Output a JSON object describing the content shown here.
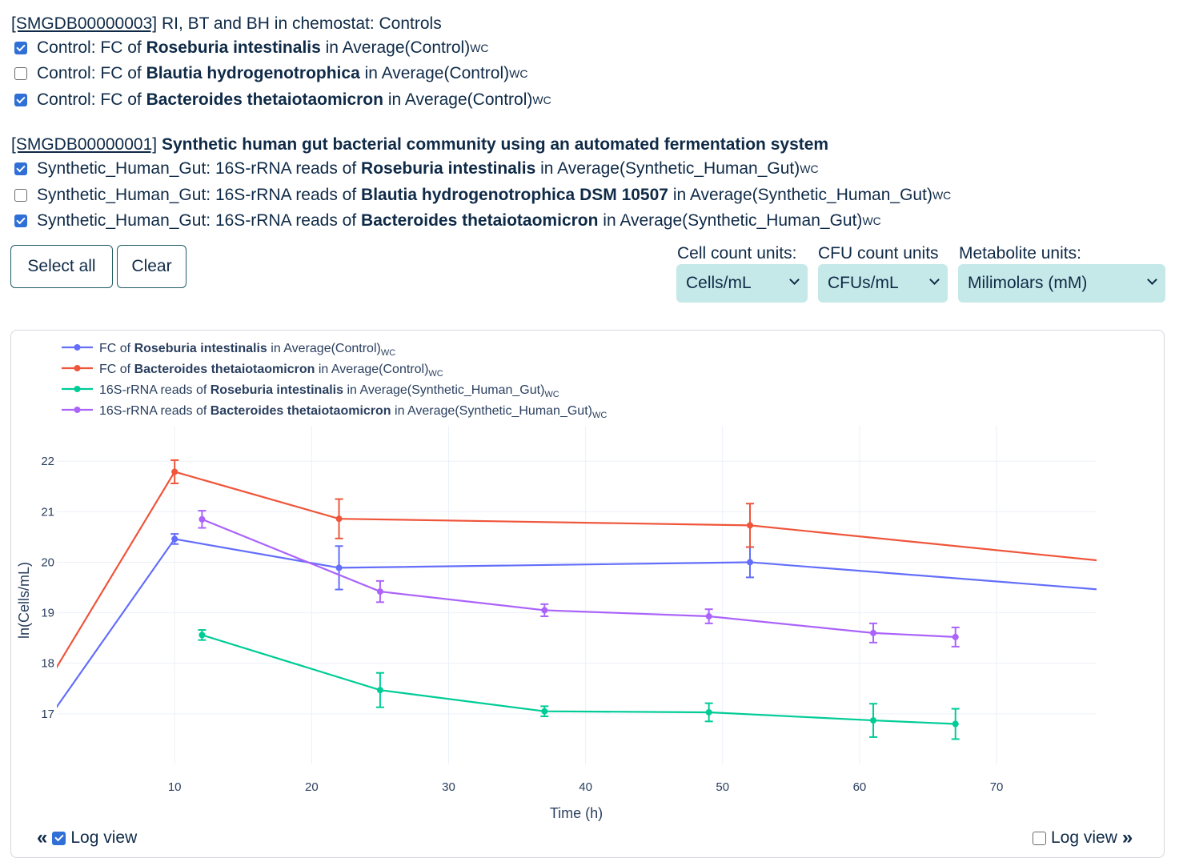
{
  "studies": [
    {
      "id": "[SMGDB00000003]",
      "name": "RI, BT and BH in chemostat: Controls",
      "series": [
        {
          "checked": true,
          "prefix": "Control: FC of ",
          "organism": "Roseburia intestinalis",
          "mid": " in Average(Control)",
          "sub": "WC"
        },
        {
          "checked": false,
          "prefix": "Control: FC of ",
          "organism": "Blautia hydrogenotrophica",
          "mid": " in Average(Control)",
          "sub": "WC"
        },
        {
          "checked": true,
          "prefix": "Control: FC of ",
          "organism": "Bacteroides thetaiotaomicron",
          "mid": " in Average(Control)",
          "sub": "WC"
        }
      ]
    },
    {
      "id": "[SMGDB00000001]",
      "name": "Synthetic human gut bacterial community using an automated fermentation system",
      "series": [
        {
          "checked": true,
          "prefix": "Synthetic_Human_Gut: 16S-rRNA reads of ",
          "organism": "Roseburia intestinalis",
          "mid": " in Average(Synthetic_Human_Gut)",
          "sub": "WC"
        },
        {
          "checked": false,
          "prefix": "Synthetic_Human_Gut: 16S-rRNA reads of ",
          "organism": "Blautia hydrogenotrophica DSM 10507",
          "mid": " in Average(Synthetic_Human_Gut)",
          "sub": "WC"
        },
        {
          "checked": true,
          "prefix": "Synthetic_Human_Gut: 16S-rRNA reads of ",
          "organism": "Bacteroides thetaiotaomicron",
          "mid": " in Average(Synthetic_Human_Gut)",
          "sub": "WC"
        }
      ]
    }
  ],
  "buttons": {
    "select_all": "Select all",
    "clear": "Clear"
  },
  "units": {
    "cell": {
      "label": "Cell count units:",
      "value": "Cells/mL"
    },
    "cfu": {
      "label": "CFU count units",
      "value": "CFUs/mL"
    },
    "metabolite": {
      "label": "Metabolite units:",
      "value": "Milimolars (mM)"
    }
  },
  "log_view": {
    "left_label": "Log view",
    "left_checked": true,
    "right_label": "Log view",
    "right_checked": false
  },
  "chart_data": {
    "type": "line",
    "xlabel": "Time (h)",
    "ylabel": "ln(Cells/mL)",
    "x_ticks": [
      10,
      20,
      30,
      40,
      50,
      60,
      70
    ],
    "y_ticks": [
      17,
      18,
      19,
      20,
      21,
      22
    ],
    "xlim": [
      1.4,
      77.3
    ],
    "ylim": [
      16.0,
      22.7
    ],
    "grid": true,
    "legend_position": "top-left",
    "series": [
      {
        "legend_prefix": "FC of ",
        "legend_organism": "Roseburia intestinalis",
        "legend_suffix": " in Average(Control)",
        "legend_sub": "WC",
        "color": "#636efa",
        "points": [
          {
            "x": 0,
            "y": 16.6,
            "marker": false
          },
          {
            "x": 10,
            "y": 20.46,
            "err": 0.1
          },
          {
            "x": 22,
            "y": 19.89,
            "err": 0.43
          },
          {
            "x": 52,
            "y": 20.0,
            "err": 0.3
          },
          {
            "x": 78,
            "y": 19.45,
            "marker": false
          }
        ]
      },
      {
        "legend_prefix": "FC of ",
        "legend_organism": "Bacteroides thetaiotaomicron",
        "legend_suffix": " in Average(Control)",
        "legend_sub": "WC",
        "color": "#ef553b",
        "points": [
          {
            "x": 0,
            "y": 17.3,
            "marker": false
          },
          {
            "x": 10,
            "y": 21.79,
            "err": 0.23
          },
          {
            "x": 22,
            "y": 20.86,
            "err": 0.39
          },
          {
            "x": 52,
            "y": 20.73,
            "err": 0.43
          },
          {
            "x": 78,
            "y": 20.02,
            "marker": false
          }
        ]
      },
      {
        "legend_prefix": "16S-rRNA reads of ",
        "legend_organism": "Roseburia intestinalis",
        "legend_suffix": " in Average(Synthetic_Human_Gut)",
        "legend_sub": "WC",
        "color": "#00cc96",
        "points": [
          {
            "x": 12,
            "y": 18.56,
            "err": 0.1
          },
          {
            "x": 25,
            "y": 17.47,
            "err": 0.34
          },
          {
            "x": 37,
            "y": 17.05,
            "err": 0.1
          },
          {
            "x": 49,
            "y": 17.03,
            "err": 0.18
          },
          {
            "x": 61,
            "y": 16.87,
            "err": 0.33
          },
          {
            "x": 67,
            "y": 16.8,
            "err": 0.3
          }
        ]
      },
      {
        "legend_prefix": "16S-rRNA reads of ",
        "legend_organism": "Bacteroides thetaiotaomicron",
        "legend_suffix": " in Average(Synthetic_Human_Gut)",
        "legend_sub": "WC",
        "color": "#ab63fa",
        "points": [
          {
            "x": 12,
            "y": 20.85,
            "err": 0.17
          },
          {
            "x": 25,
            "y": 19.42,
            "err": 0.21
          },
          {
            "x": 37,
            "y": 19.05,
            "err": 0.12
          },
          {
            "x": 49,
            "y": 18.93,
            "err": 0.14
          },
          {
            "x": 61,
            "y": 18.6,
            "err": 0.19
          },
          {
            "x": 67,
            "y": 18.52,
            "err": 0.19
          }
        ]
      }
    ]
  }
}
